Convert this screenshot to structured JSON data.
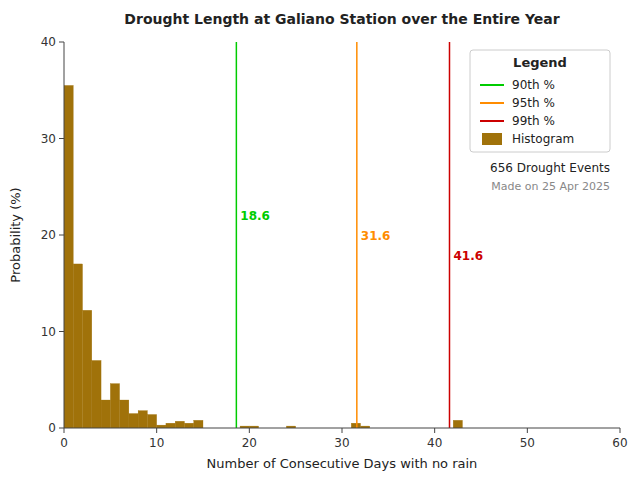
{
  "chart_data": {
    "type": "histogram",
    "title": "Drought Length at Galiano Station over the Entire Year",
    "x_label": "Number of Consecutive Days with no rain",
    "y_label": "Probability (%)",
    "xlim": [
      0,
      60
    ],
    "ylim": [
      0,
      40
    ],
    "xticks": [
      0,
      10,
      20,
      30,
      40,
      50,
      60
    ],
    "yticks": [
      0,
      10,
      20,
      30,
      40
    ],
    "grid": false,
    "legend": "upper right",
    "legend_title": "Legend",
    "bins": [
      0,
      1,
      2,
      3,
      4,
      5,
      6,
      7,
      8,
      9,
      10,
      11,
      12,
      13,
      14,
      15,
      16,
      17,
      18,
      19,
      20,
      21,
      22,
      23,
      24,
      25,
      26,
      27,
      28,
      29,
      30,
      31,
      32,
      33,
      34,
      35,
      36,
      37,
      38,
      39,
      40,
      41,
      42,
      43,
      44,
      45,
      46,
      47,
      48,
      49,
      50,
      51,
      52,
      53,
      54,
      55,
      56,
      57,
      58,
      59,
      60
    ],
    "series": [
      {
        "name": "Histogram",
        "color": "#A0720A",
        "values": [
          35.5,
          17.0,
          12.2,
          7.0,
          2.9,
          4.6,
          2.9,
          1.5,
          1.8,
          1.4,
          0.3,
          0.5,
          0.7,
          0.5,
          0.8,
          0.0,
          0.0,
          0.0,
          0.0,
          0.2,
          0.2,
          0.0,
          0.0,
          0.0,
          0.2,
          0.0,
          0.0,
          0.0,
          0.0,
          0.0,
          0.0,
          0.5,
          0.2,
          0.0,
          0.0,
          0.0,
          0.0,
          0.0,
          0.0,
          0.0,
          0.0,
          0.0,
          0.8,
          0.0,
          0.0,
          0.0,
          0.0,
          0.0,
          0.0,
          0.0,
          0.0,
          0.0,
          0.0,
          0.0,
          0.0,
          0.0,
          0.0,
          0.0,
          0.0,
          0.0
        ]
      }
    ],
    "lines": [
      {
        "name": "90th %",
        "value": 18.6,
        "color": "#00cc00"
      },
      {
        "name": "95th %",
        "value": 31.6,
        "color": "#ff8c00"
      },
      {
        "name": "99th %",
        "value": 41.6,
        "color": "#cc0000"
      }
    ],
    "annotations": [
      "656 Drought Events",
      "Made on 25 Apr 2025"
    ]
  }
}
